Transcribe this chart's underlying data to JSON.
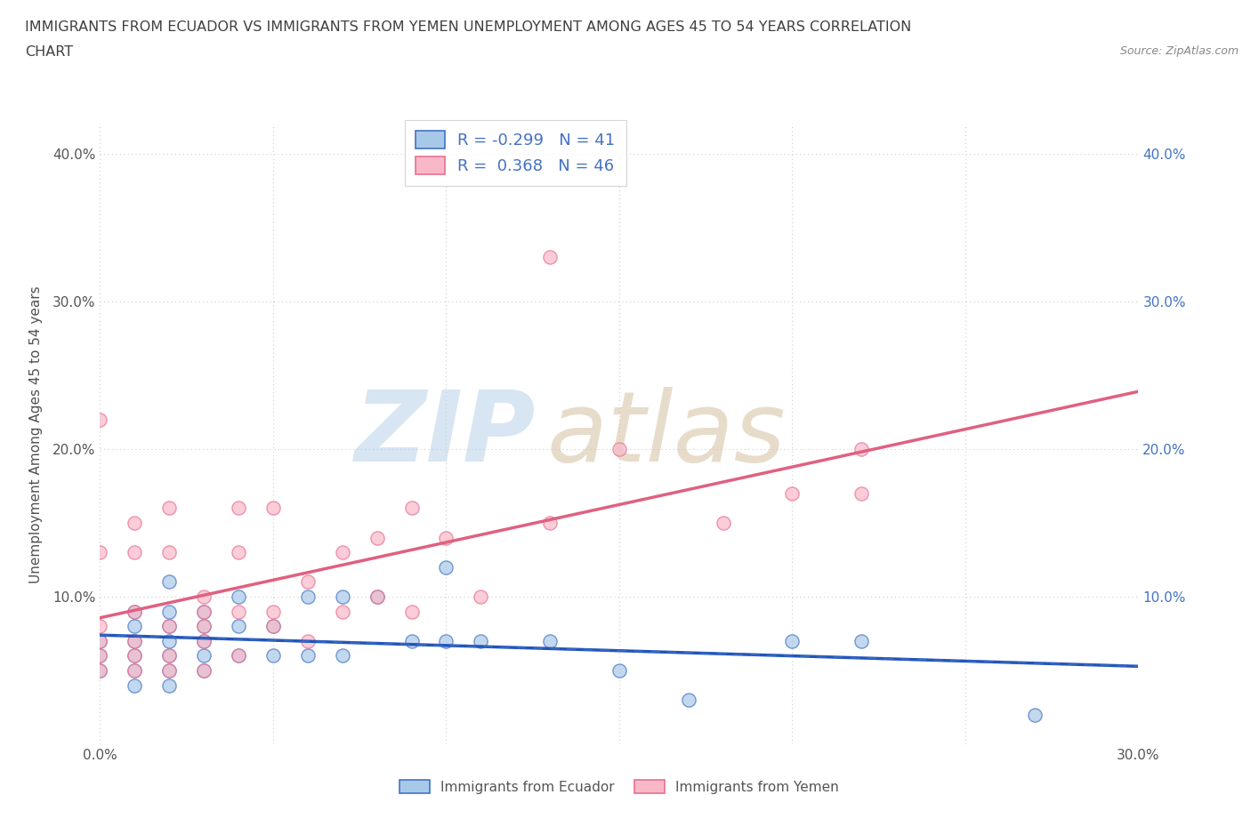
{
  "title_line1": "IMMIGRANTS FROM ECUADOR VS IMMIGRANTS FROM YEMEN UNEMPLOYMENT AMONG AGES 45 TO 54 YEARS CORRELATION",
  "title_line2": "CHART",
  "source": "Source: ZipAtlas.com",
  "ylabel": "Unemployment Among Ages 45 to 54 years",
  "xlim": [
    0.0,
    0.3
  ],
  "ylim": [
    0.0,
    0.42
  ],
  "xticks": [
    0.0,
    0.05,
    0.1,
    0.15,
    0.2,
    0.25,
    0.3
  ],
  "yticks": [
    0.0,
    0.1,
    0.2,
    0.3,
    0.4
  ],
  "ecuador_color_fill": "#a8c8e8",
  "ecuador_edge_color": "#4472c4",
  "yemen_color_fill": "#f9b8c8",
  "yemen_edge_color": "#e87090",
  "ecuador_R": -0.299,
  "ecuador_N": 41,
  "yemen_R": 0.368,
  "yemen_N": 46,
  "ecuador_line_color": "#2255bb",
  "yemen_line_color": "#e06080",
  "legend_label_ecuador": "Immigrants from Ecuador",
  "legend_label_yemen": "Immigrants from Yemen",
  "ecuador_x": [
    0.0,
    0.0,
    0.0,
    0.01,
    0.01,
    0.01,
    0.01,
    0.01,
    0.01,
    0.02,
    0.02,
    0.02,
    0.02,
    0.02,
    0.02,
    0.02,
    0.03,
    0.03,
    0.03,
    0.03,
    0.03,
    0.04,
    0.04,
    0.04,
    0.05,
    0.05,
    0.06,
    0.06,
    0.07,
    0.07,
    0.08,
    0.09,
    0.1,
    0.1,
    0.11,
    0.13,
    0.15,
    0.17,
    0.2,
    0.22,
    0.27
  ],
  "ecuador_y": [
    0.05,
    0.06,
    0.07,
    0.04,
    0.05,
    0.06,
    0.07,
    0.08,
    0.09,
    0.04,
    0.05,
    0.06,
    0.07,
    0.08,
    0.09,
    0.11,
    0.05,
    0.06,
    0.07,
    0.08,
    0.09,
    0.06,
    0.08,
    0.1,
    0.06,
    0.08,
    0.06,
    0.1,
    0.06,
    0.1,
    0.1,
    0.07,
    0.07,
    0.12,
    0.07,
    0.07,
    0.05,
    0.03,
    0.07,
    0.07,
    0.02
  ],
  "yemen_x": [
    0.0,
    0.0,
    0.0,
    0.0,
    0.0,
    0.0,
    0.01,
    0.01,
    0.01,
    0.01,
    0.01,
    0.01,
    0.02,
    0.02,
    0.02,
    0.02,
    0.02,
    0.03,
    0.03,
    0.03,
    0.03,
    0.03,
    0.04,
    0.04,
    0.04,
    0.04,
    0.05,
    0.05,
    0.05,
    0.06,
    0.06,
    0.07,
    0.07,
    0.08,
    0.08,
    0.09,
    0.09,
    0.1,
    0.11,
    0.13,
    0.15,
    0.18,
    0.2,
    0.22,
    0.13,
    0.22
  ],
  "yemen_y": [
    0.05,
    0.06,
    0.07,
    0.08,
    0.13,
    0.22,
    0.05,
    0.06,
    0.07,
    0.09,
    0.13,
    0.15,
    0.05,
    0.06,
    0.08,
    0.13,
    0.16,
    0.05,
    0.07,
    0.08,
    0.09,
    0.1,
    0.06,
    0.09,
    0.13,
    0.16,
    0.08,
    0.09,
    0.16,
    0.07,
    0.11,
    0.09,
    0.13,
    0.1,
    0.14,
    0.09,
    0.16,
    0.14,
    0.1,
    0.33,
    0.2,
    0.15,
    0.17,
    0.2,
    0.15,
    0.17
  ],
  "background_color": "#ffffff",
  "grid_color": "#cccccc",
  "title_color": "#404040",
  "axis_color": "#505050"
}
